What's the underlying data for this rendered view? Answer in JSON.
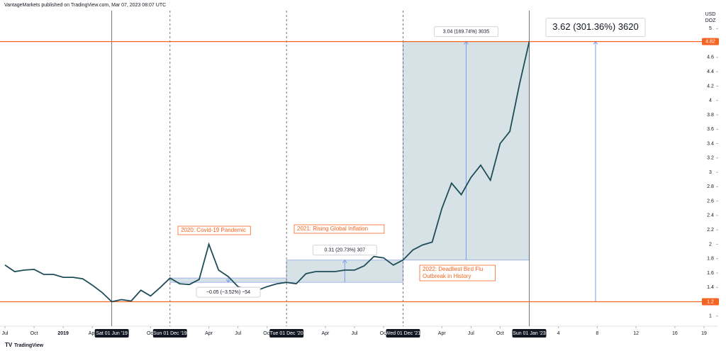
{
  "header": {
    "publisher": "VantageMarkets published on TradingView.com, Mar 07, 2023 08:07 UTC",
    "footer": "TradingView"
  },
  "chart_data": {
    "type": "line",
    "color": "#1e4d58",
    "unit": [
      "USD",
      "DOZ"
    ],
    "x": [
      "2018-07",
      "2018-08",
      "2018-09",
      "2018-10",
      "2018-11",
      "2018-12",
      "2019-01",
      "2019-02",
      "2019-03",
      "2019-04",
      "2019-05",
      "2019-06",
      "2019-07",
      "2019-08",
      "2019-09",
      "2019-10",
      "2019-11",
      "2019-12",
      "2020-01",
      "2020-02",
      "2020-03",
      "2020-04",
      "2020-05",
      "2020-06",
      "2020-07",
      "2020-08",
      "2020-09",
      "2020-10",
      "2020-11",
      "2020-12",
      "2021-01",
      "2021-02",
      "2021-03",
      "2021-04",
      "2021-05",
      "2021-06",
      "2021-07",
      "2021-08",
      "2021-09",
      "2021-10",
      "2021-11",
      "2021-12",
      "2022-01",
      "2022-02",
      "2022-03",
      "2022-04",
      "2022-05",
      "2022-06",
      "2022-07",
      "2022-08",
      "2022-09",
      "2022-10",
      "2022-11",
      "2022-12",
      "2023-01"
    ],
    "values": [
      1.71,
      1.62,
      1.64,
      1.65,
      1.58,
      1.58,
      1.54,
      1.54,
      1.52,
      1.43,
      1.33,
      1.2,
      1.23,
      1.21,
      1.36,
      1.28,
      1.4,
      1.53,
      1.45,
      1.44,
      1.51,
      2.0,
      1.64,
      1.55,
      1.41,
      1.37,
      1.36,
      1.41,
      1.45,
      1.47,
      1.45,
      1.59,
      1.62,
      1.62,
      1.62,
      1.64,
      1.64,
      1.7,
      1.83,
      1.81,
      1.71,
      1.78,
      1.92,
      1.99,
      2.03,
      2.5,
      2.85,
      2.69,
      2.93,
      3.1,
      2.89,
      3.4,
      3.57,
      4.23,
      4.82
    ],
    "xlim": [
      "2018-07",
      "2024-07"
    ],
    "xticks": [
      {
        "value": "2018-07",
        "label": "Jul"
      },
      {
        "value": "2018-10",
        "label": "Oct"
      },
      {
        "value": "2019-01",
        "label": "2019"
      },
      {
        "value": "2019-04",
        "label": "Apr"
      },
      {
        "value": "2019-10",
        "label": "Oct"
      },
      {
        "value": "2020-04",
        "label": "Apr"
      },
      {
        "value": "2020-07",
        "label": "Jul"
      },
      {
        "value": "2020-10",
        "label": "Oct"
      },
      {
        "value": "2021-04",
        "label": "Apr"
      },
      {
        "value": "2021-07",
        "label": "Jul"
      },
      {
        "value": "2021-10",
        "label": "Oct"
      },
      {
        "value": "2022-04",
        "label": "Apr"
      },
      {
        "value": "2022-07",
        "label": "Jul"
      },
      {
        "value": "2022-10",
        "label": "Oct"
      },
      {
        "value": "2023-04",
        "label": "4"
      },
      {
        "value": "2023-08",
        "label": "8"
      },
      {
        "value": "2023-12",
        "label": "12"
      },
      {
        "value": "2024-04",
        "label": "16"
      },
      {
        "value": "2024-07",
        "label": "19"
      }
    ],
    "ylim": [
      0.86,
      5.25
    ],
    "yticks": [
      1,
      1.4,
      1.6,
      1.8,
      2,
      2.2,
      2.4,
      2.6,
      2.8,
      3,
      3.2,
      3.4,
      3.6,
      3.8,
      4,
      4.2,
      4.4,
      4.6,
      5
    ],
    "price_lines": [
      {
        "value": 4.82,
        "color": "#f26522"
      },
      {
        "value": 1.2,
        "color": "#f26522"
      }
    ],
    "markers": [
      {
        "date": "2019-06",
        "label": "Sat 01 Jun '19",
        "style": "solid"
      },
      {
        "date": "2019-12",
        "label": "Sun 01 Dec '19",
        "style": "dashed"
      },
      {
        "date": "2020-12",
        "label": "Tue 01 Dec '20",
        "style": "dashed"
      },
      {
        "date": "2021-12",
        "label": "Wed 01 Dec '21",
        "style": "dashed"
      },
      {
        "date": "2023-01",
        "label": "Sun 01 Jan '23",
        "style": "solid"
      }
    ],
    "measures": [
      {
        "start": "2019-12",
        "end": "2020-12",
        "from": 1.53,
        "to": 1.47,
        "label": "−0.05 (−3.52%) −54"
      },
      {
        "start": "2020-12",
        "end": "2021-12",
        "from": 1.47,
        "to": 1.78,
        "label": "0.31 (20.73%) 307"
      },
      {
        "start": "2021-12",
        "end": "2023-01",
        "from": 1.78,
        "to": 4.82,
        "label": "3.04 (169.74%) 3035"
      },
      {
        "from": 1.2,
        "to": 4.82,
        "label": "3.62 (301.36%) 3620"
      }
    ],
    "annotations": [
      {
        "lines": [
          "2020: Covid-19 Pandemic"
        ]
      },
      {
        "lines": [
          "2021: Rising Global Inflation"
        ]
      },
      {
        "lines": [
          "2022: Deadliest Bird Flu",
          "Outbreak in History"
        ]
      }
    ]
  }
}
